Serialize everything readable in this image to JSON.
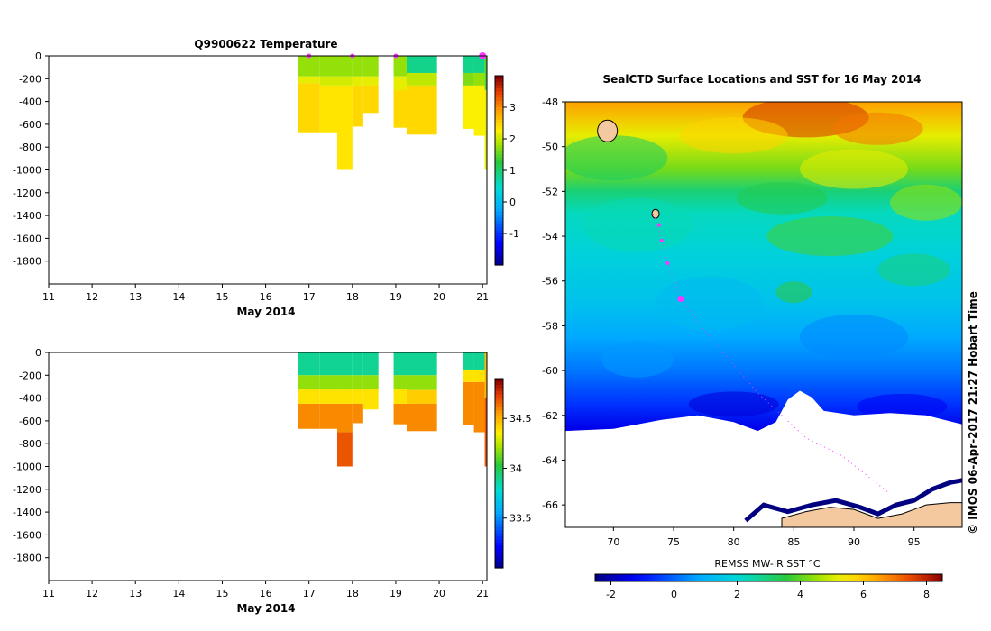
{
  "colors": {
    "marker": "#ff33ff",
    "land": "#f5c9a0",
    "coast": "#000080"
  },
  "chart_data": [
    {
      "id": "temperature",
      "type": "heatmap",
      "title": "Q9900622  Temperature",
      "xlabel": "May 2014",
      "xlim": [
        11,
        21.1
      ],
      "xticks": [
        11,
        12,
        13,
        14,
        15,
        16,
        17,
        18,
        19,
        20,
        21
      ],
      "ylim": [
        -2000,
        0
      ],
      "yticks": [
        0,
        -200,
        -400,
        -600,
        -800,
        -1000,
        -1200,
        -1400,
        -1600,
        -1800
      ],
      "colorbar": {
        "min": -2,
        "max": 4,
        "ticks": [
          3,
          2,
          1,
          0,
          -1
        ],
        "tick_labels": [
          "3",
          "2",
          "1",
          "0",
          "-1"
        ]
      },
      "profiles": [
        {
          "start": 16.75,
          "end": 17.25,
          "max_depth": 670,
          "bands": [
            [
              0,
              180,
              1.8
            ],
            [
              180,
              240,
              2.2
            ],
            [
              240,
              670,
              2.5
            ]
          ]
        },
        {
          "start": 17.25,
          "end": 17.65,
          "max_depth": 670,
          "bands": [
            [
              0,
              180,
              1.8
            ],
            [
              180,
              260,
              2.1
            ],
            [
              260,
              670,
              2.4
            ]
          ]
        },
        {
          "start": 17.65,
          "end": 18.0,
          "max_depth": 1000,
          "bands": [
            [
              0,
              180,
              1.8
            ],
            [
              180,
              260,
              2.1
            ],
            [
              260,
              1000,
              2.4
            ]
          ]
        },
        {
          "start": 18.0,
          "end": 18.25,
          "max_depth": 620,
          "bands": [
            [
              0,
              180,
              1.8
            ],
            [
              180,
              260,
              2.2
            ],
            [
              260,
              620,
              2.5
            ]
          ]
        },
        {
          "start": 18.25,
          "end": 18.6,
          "max_depth": 500,
          "bands": [
            [
              0,
              180,
              1.8
            ],
            [
              180,
              260,
              2.2
            ],
            [
              260,
              500,
              2.5
            ]
          ]
        },
        {
          "start": 18.95,
          "end": 19.25,
          "max_depth": 630,
          "bands": [
            [
              0,
              180,
              1.8
            ],
            [
              180,
              300,
              2.2
            ],
            [
              300,
              630,
              2.5
            ]
          ]
        },
        {
          "start": 19.25,
          "end": 19.95,
          "max_depth": 690,
          "bands": [
            [
              0,
              150,
              0.9
            ],
            [
              150,
              260,
              2.0
            ],
            [
              260,
              690,
              2.5
            ]
          ]
        },
        {
          "start": 20.55,
          "end": 20.8,
          "max_depth": 640,
          "bands": [
            [
              0,
              150,
              0.9
            ],
            [
              150,
              260,
              1.7
            ],
            [
              260,
              640,
              2.3
            ]
          ]
        },
        {
          "start": 20.8,
          "end": 21.05,
          "max_depth": 700,
          "bands": [
            [
              0,
              150,
              0.9
            ],
            [
              150,
              260,
              1.8
            ],
            [
              260,
              700,
              2.3
            ]
          ]
        },
        {
          "start": 21.05,
          "end": 21.1,
          "max_depth": 1000,
          "bands": [
            [
              0,
              300,
              1.5
            ],
            [
              300,
              1000,
              2.2
            ]
          ]
        }
      ],
      "markers": [
        17,
        18,
        19,
        21
      ]
    },
    {
      "id": "salinity",
      "type": "heatmap",
      "title": "",
      "xlabel": "May 2014",
      "xlim": [
        11,
        21.1
      ],
      "xticks": [
        11,
        12,
        13,
        14,
        15,
        16,
        17,
        18,
        19,
        20,
        21
      ],
      "ylim": [
        -2000,
        0
      ],
      "yticks": [
        0,
        -200,
        -400,
        -600,
        -800,
        -1000,
        -1200,
        -1400,
        -1600,
        -1800
      ],
      "colorbar": {
        "min": 33.0,
        "max": 34.9,
        "ticks": [
          34.5,
          34,
          33.5
        ],
        "tick_labels": [
          "34.5",
          "34",
          "33.5"
        ]
      },
      "profiles": [
        {
          "start": 16.75,
          "end": 17.25,
          "max_depth": 670,
          "bands": [
            [
              0,
              200,
              33.9
            ],
            [
              200,
              320,
              34.2
            ],
            [
              320,
              450,
              34.4
            ],
            [
              450,
              670,
              34.6
            ]
          ]
        },
        {
          "start": 17.25,
          "end": 17.65,
          "max_depth": 670,
          "bands": [
            [
              0,
              200,
              33.9
            ],
            [
              200,
              320,
              34.2
            ],
            [
              320,
              450,
              34.4
            ],
            [
              450,
              670,
              34.6
            ]
          ]
        },
        {
          "start": 17.65,
          "end": 18.0,
          "max_depth": 1000,
          "bands": [
            [
              0,
              200,
              33.9
            ],
            [
              200,
              320,
              34.2
            ],
            [
              320,
              450,
              34.4
            ],
            [
              450,
              700,
              34.6
            ],
            [
              700,
              1000,
              34.7
            ]
          ]
        },
        {
          "start": 18.0,
          "end": 18.25,
          "max_depth": 620,
          "bands": [
            [
              0,
              200,
              33.9
            ],
            [
              200,
              320,
              34.2
            ],
            [
              320,
              450,
              34.4
            ],
            [
              450,
              620,
              34.6
            ]
          ]
        },
        {
          "start": 18.25,
          "end": 18.6,
          "max_depth": 500,
          "bands": [
            [
              0,
              200,
              33.9
            ],
            [
              200,
              320,
              34.2
            ],
            [
              320,
              500,
              34.4
            ]
          ]
        },
        {
          "start": 18.95,
          "end": 19.25,
          "max_depth": 630,
          "bands": [
            [
              0,
              200,
              33.9
            ],
            [
              200,
              320,
              34.2
            ],
            [
              320,
              450,
              34.4
            ],
            [
              450,
              630,
              34.6
            ]
          ]
        },
        {
          "start": 19.25,
          "end": 19.95,
          "max_depth": 690,
          "bands": [
            [
              0,
              200,
              33.9
            ],
            [
              200,
              330,
              34.2
            ],
            [
              330,
              450,
              34.45
            ],
            [
              450,
              690,
              34.6
            ]
          ]
        },
        {
          "start": 20.55,
          "end": 20.8,
          "max_depth": 640,
          "bands": [
            [
              0,
              150,
              33.9
            ],
            [
              150,
              260,
              34.4
            ],
            [
              260,
              640,
              34.6
            ]
          ]
        },
        {
          "start": 20.8,
          "end": 21.05,
          "max_depth": 700,
          "bands": [
            [
              0,
              150,
              33.9
            ],
            [
              150,
              260,
              34.4
            ],
            [
              260,
              700,
              34.6
            ]
          ]
        },
        {
          "start": 21.05,
          "end": 21.1,
          "max_depth": 1000,
          "bands": [
            [
              0,
              400,
              34.5
            ],
            [
              400,
              1000,
              34.7
            ]
          ]
        }
      ],
      "markers": []
    },
    {
      "id": "sst_map",
      "type": "heatmap",
      "title": "SealCTD Surface Locations and SST for 16 May 2014",
      "xlim": [
        66,
        99
      ],
      "ylim": [
        -67,
        -48
      ],
      "xticks": [
        70,
        75,
        80,
        85,
        90,
        95
      ],
      "xtick_labels": [
        "70",
        "75",
        "80",
        "85",
        "90",
        "95"
      ],
      "yticks": [
        -48,
        -50,
        -52,
        -54,
        -56,
        -58,
        -60,
        -62,
        -64,
        -66
      ],
      "ytick_labels": [
        "-48",
        "-50",
        "-52",
        "-54",
        "-56",
        "-58",
        "-60",
        "-62",
        "-64",
        "-66"
      ],
      "colorbar": {
        "label": "REMSS MW-IR SST °C",
        "min": -2.5,
        "max": 8.5,
        "ticks": [
          -2,
          0,
          2,
          4,
          6,
          8
        ],
        "tick_labels": [
          "-2",
          "0",
          "2",
          "4",
          "6",
          "8"
        ]
      },
      "sst_profile": [
        [
          -48,
          6.5
        ],
        [
          -49.5,
          5.2
        ],
        [
          -51,
          4.2
        ],
        [
          -52,
          3.0
        ],
        [
          -53,
          2.3
        ],
        [
          -55,
          1.8
        ],
        [
          -57,
          1.4
        ],
        [
          -58.5,
          0.8
        ],
        [
          -60,
          0.2
        ],
        [
          -61.5,
          -0.6
        ],
        [
          -62.6,
          -1.4
        ]
      ],
      "ice_edge": [
        [
          66,
          -62.7
        ],
        [
          70,
          -62.6
        ],
        [
          74,
          -62.2
        ],
        [
          77,
          -62.0
        ],
        [
          80,
          -62.3
        ],
        [
          82,
          -62.7
        ],
        [
          83.5,
          -62.3
        ],
        [
          84.5,
          -61.3
        ],
        [
          85.5,
          -60.9
        ],
        [
          86.5,
          -61.2
        ],
        [
          87.5,
          -61.8
        ],
        [
          90,
          -62.0
        ],
        [
          93,
          -61.9
        ],
        [
          96,
          -62.0
        ],
        [
          99,
          -62.4
        ]
      ],
      "track": [
        [
          73.3,
          -53.0
        ],
        [
          73.7,
          -53.6
        ],
        [
          74.0,
          -54.2
        ],
        [
          74.5,
          -55.2
        ],
        [
          75.6,
          -56.8
        ],
        [
          78,
          -58.5
        ],
        [
          82,
          -61.0
        ],
        [
          86,
          -63.0
        ],
        [
          89,
          -63.8
        ],
        [
          93,
          -65.5
        ]
      ],
      "seal_positions": [
        [
          73.8,
          -53.5
        ],
        [
          74.0,
          -54.2
        ],
        [
          74.5,
          -55.2
        ],
        [
          75.6,
          -56.8
        ]
      ],
      "islands": [
        [
          69.5,
          -49.3
        ],
        [
          73.5,
          -53.0
        ]
      ],
      "stamp": "©  IMOS 06-Apr-2017 21:27 Hobart Time"
    }
  ]
}
